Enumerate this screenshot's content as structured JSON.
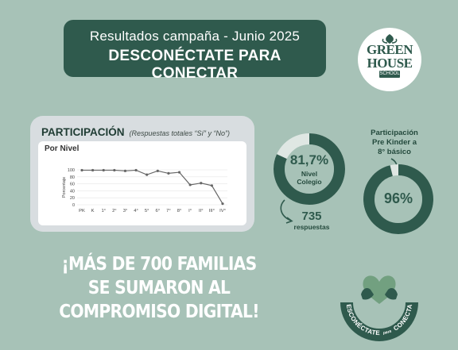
{
  "banner": {
    "line1": "Resultados campaña - Junio 2025",
    "line2": "DESCONÉCTATE PARA CONECTAR"
  },
  "logo": {
    "line1": "GREEN",
    "line2": "HOUSE",
    "line3": "SCHOOL"
  },
  "participation": {
    "title": "PARTICIPACIÓN",
    "subtitle": "(Respuestas totales “Sí” y “No”)",
    "card_title": "Por Nivel"
  },
  "chart_data": {
    "type": "line",
    "title": "Por Nivel",
    "xlabel": "",
    "ylabel": "Porcentaje",
    "categories": [
      "PK",
      "K",
      "1°",
      "2°",
      "3°",
      "4°",
      "5°",
      "6°",
      "7°",
      "8°",
      "I°",
      "II°",
      "III°",
      "IV°"
    ],
    "values": [
      99,
      99,
      99,
      99,
      97,
      99,
      86,
      97,
      90,
      93,
      57,
      62,
      55,
      3
    ],
    "ylim": [
      0,
      100
    ],
    "yticks": [
      0,
      20,
      40,
      60,
      80,
      100
    ],
    "grid": true,
    "color": "#666666"
  },
  "ring_school": {
    "value": 81.7,
    "value_label": "81,7%",
    "label_line1": "Nivel",
    "label_line2": "Colegio",
    "color": "#2f5a4d"
  },
  "responses": {
    "count": "735",
    "label": "respuestas"
  },
  "ring_levels": {
    "caption_line1": "Participación",
    "caption_line2": "Pre Kinder a",
    "caption_line3": "8° básico",
    "value": 96,
    "value_label": "96%",
    "color": "#2f5a4d"
  },
  "slogan": {
    "line1": "¡MÁS DE 700 FAMILIAS",
    "line2": "SE SUMARON AL",
    "line3": "COMPROMISO DIGITAL!"
  },
  "stamp": {
    "text_left": "DESCONÉCTATE",
    "text_mid": "para",
    "text_right": "CONECTAR"
  }
}
